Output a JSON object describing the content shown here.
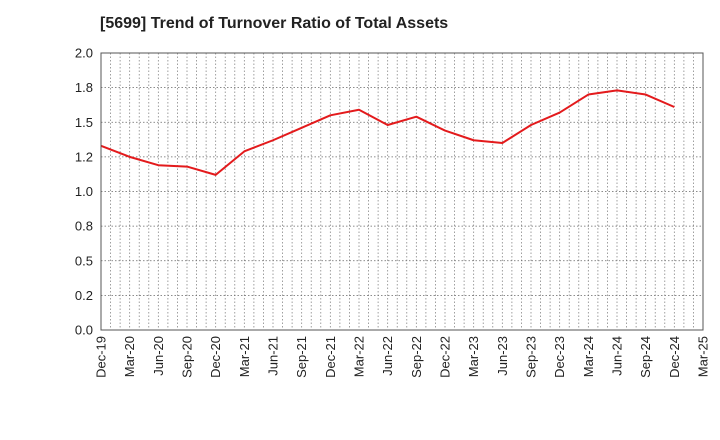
{
  "chart_data": {
    "type": "line",
    "title": "[5699]  Trend of Turnover Ratio of Total Assets",
    "xlabel": "",
    "ylabel": "",
    "ylim": [
      0.0,
      2.0
    ],
    "y_ticks": [
      0.0,
      0.25,
      0.5,
      0.75,
      1.0,
      1.25,
      1.5,
      1.75,
      2.0
    ],
    "y_tick_labels": [
      "0.0",
      "0.2",
      "0.5",
      "0.8",
      "1.0",
      "1.2",
      "1.5",
      "1.8",
      "2.0"
    ],
    "x_tick_labels": [
      "Dec-19",
      "Mar-20",
      "Jun-20",
      "Sep-20",
      "Dec-20",
      "Mar-21",
      "Jun-21",
      "Sep-21",
      "Dec-21",
      "Mar-22",
      "Jun-22",
      "Sep-22",
      "Dec-22",
      "Mar-23",
      "Jun-23",
      "Sep-23",
      "Dec-23",
      "Mar-24",
      "Jun-24",
      "Sep-24",
      "Dec-24",
      "Mar-25"
    ],
    "grid": true,
    "series": [
      {
        "name": "",
        "color": "#e31a1c",
        "x": [
          "Dec-19",
          "Mar-20",
          "Jun-20",
          "Sep-20",
          "Dec-20",
          "Mar-21",
          "Jun-21",
          "Sep-21",
          "Dec-21",
          "Mar-22",
          "Jun-22",
          "Sep-22",
          "Dec-22",
          "Mar-23",
          "Jun-23",
          "Sep-23",
          "Dec-23",
          "Mar-24",
          "Jun-24",
          "Sep-24",
          "Dec-24"
        ],
        "values": [
          1.33,
          1.25,
          1.19,
          1.18,
          1.12,
          1.29,
          1.37,
          1.46,
          1.55,
          1.59,
          1.48,
          1.54,
          1.44,
          1.37,
          1.35,
          1.48,
          1.57,
          1.7,
          1.73,
          1.7,
          1.61
        ]
      }
    ]
  }
}
